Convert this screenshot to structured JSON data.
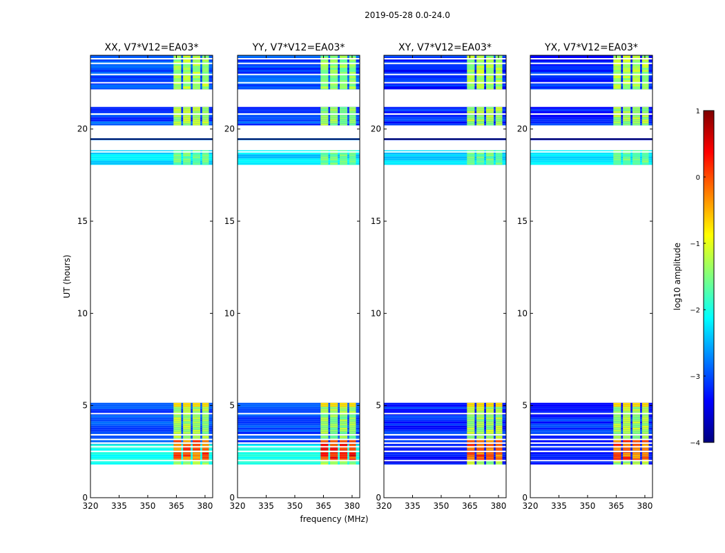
{
  "figure": {
    "suptitle": "2019-05-28 0.0-24.0",
    "xlabel": "frequency (MHz)",
    "ylabel": "UT (hours)"
  },
  "colorbar": {
    "label": "log10 amplitude",
    "range": [
      -4,
      1
    ],
    "ticks": [
      1,
      0,
      -1,
      -2,
      -3,
      -4
    ],
    "tick_labels": [
      "1",
      "0",
      "−1",
      "−2",
      "−3",
      "−4"
    ],
    "colormap": "jet",
    "colors": [
      "#00007f",
      "#0000ff",
      "#007fff",
      "#00ffff",
      "#7fff7f",
      "#ffff00",
      "#ff7f00",
      "#ff0000",
      "#7f0000"
    ]
  },
  "chart_data": {
    "type": "heatmap",
    "xlim": [
      320,
      384
    ],
    "ylim": [
      0,
      24
    ],
    "x_ticks": [
      320,
      335,
      350,
      365,
      380
    ],
    "x_tick_labels": [
      "320",
      "335",
      "350",
      "365",
      "380"
    ],
    "y_ticks": [
      0,
      5,
      10,
      15,
      20
    ],
    "y_tick_labels": [
      "0",
      "5",
      "10",
      "15",
      "20"
    ],
    "data_blocks_hours": [
      [
        1.8,
        5.15
      ],
      [
        18.05,
        18.85
      ],
      [
        19.4,
        19.5
      ],
      [
        20.2,
        21.2
      ],
      [
        22.15,
        24.0
      ]
    ],
    "rfi_channels_mhz": [
      [
        363.5,
        367.5
      ],
      [
        368.5,
        372.5
      ],
      [
        373.5,
        377.5
      ],
      [
        378.5,
        382
      ]
    ],
    "panels": [
      {
        "title": "XX, V7*V12=EA03*",
        "baseline_level": -3.0,
        "low_band_level": -2.1,
        "rfi_level": -1.3,
        "peak_level": 0.3
      },
      {
        "title": "YY, V7*V12=EA03*",
        "baseline_level": -3.0,
        "low_band_level": -2.1,
        "rfi_level": -1.4,
        "peak_level": 0.6
      },
      {
        "title": "XY, V7*V12=EA03*",
        "baseline_level": -3.2,
        "low_band_level": -3.3,
        "rfi_level": -1.3,
        "peak_level": 0.3
      },
      {
        "title": "YX, V7*V12=EA03*",
        "baseline_level": -3.2,
        "low_band_level": -3.3,
        "rfi_level": -1.3,
        "peak_level": 0.3
      }
    ]
  }
}
